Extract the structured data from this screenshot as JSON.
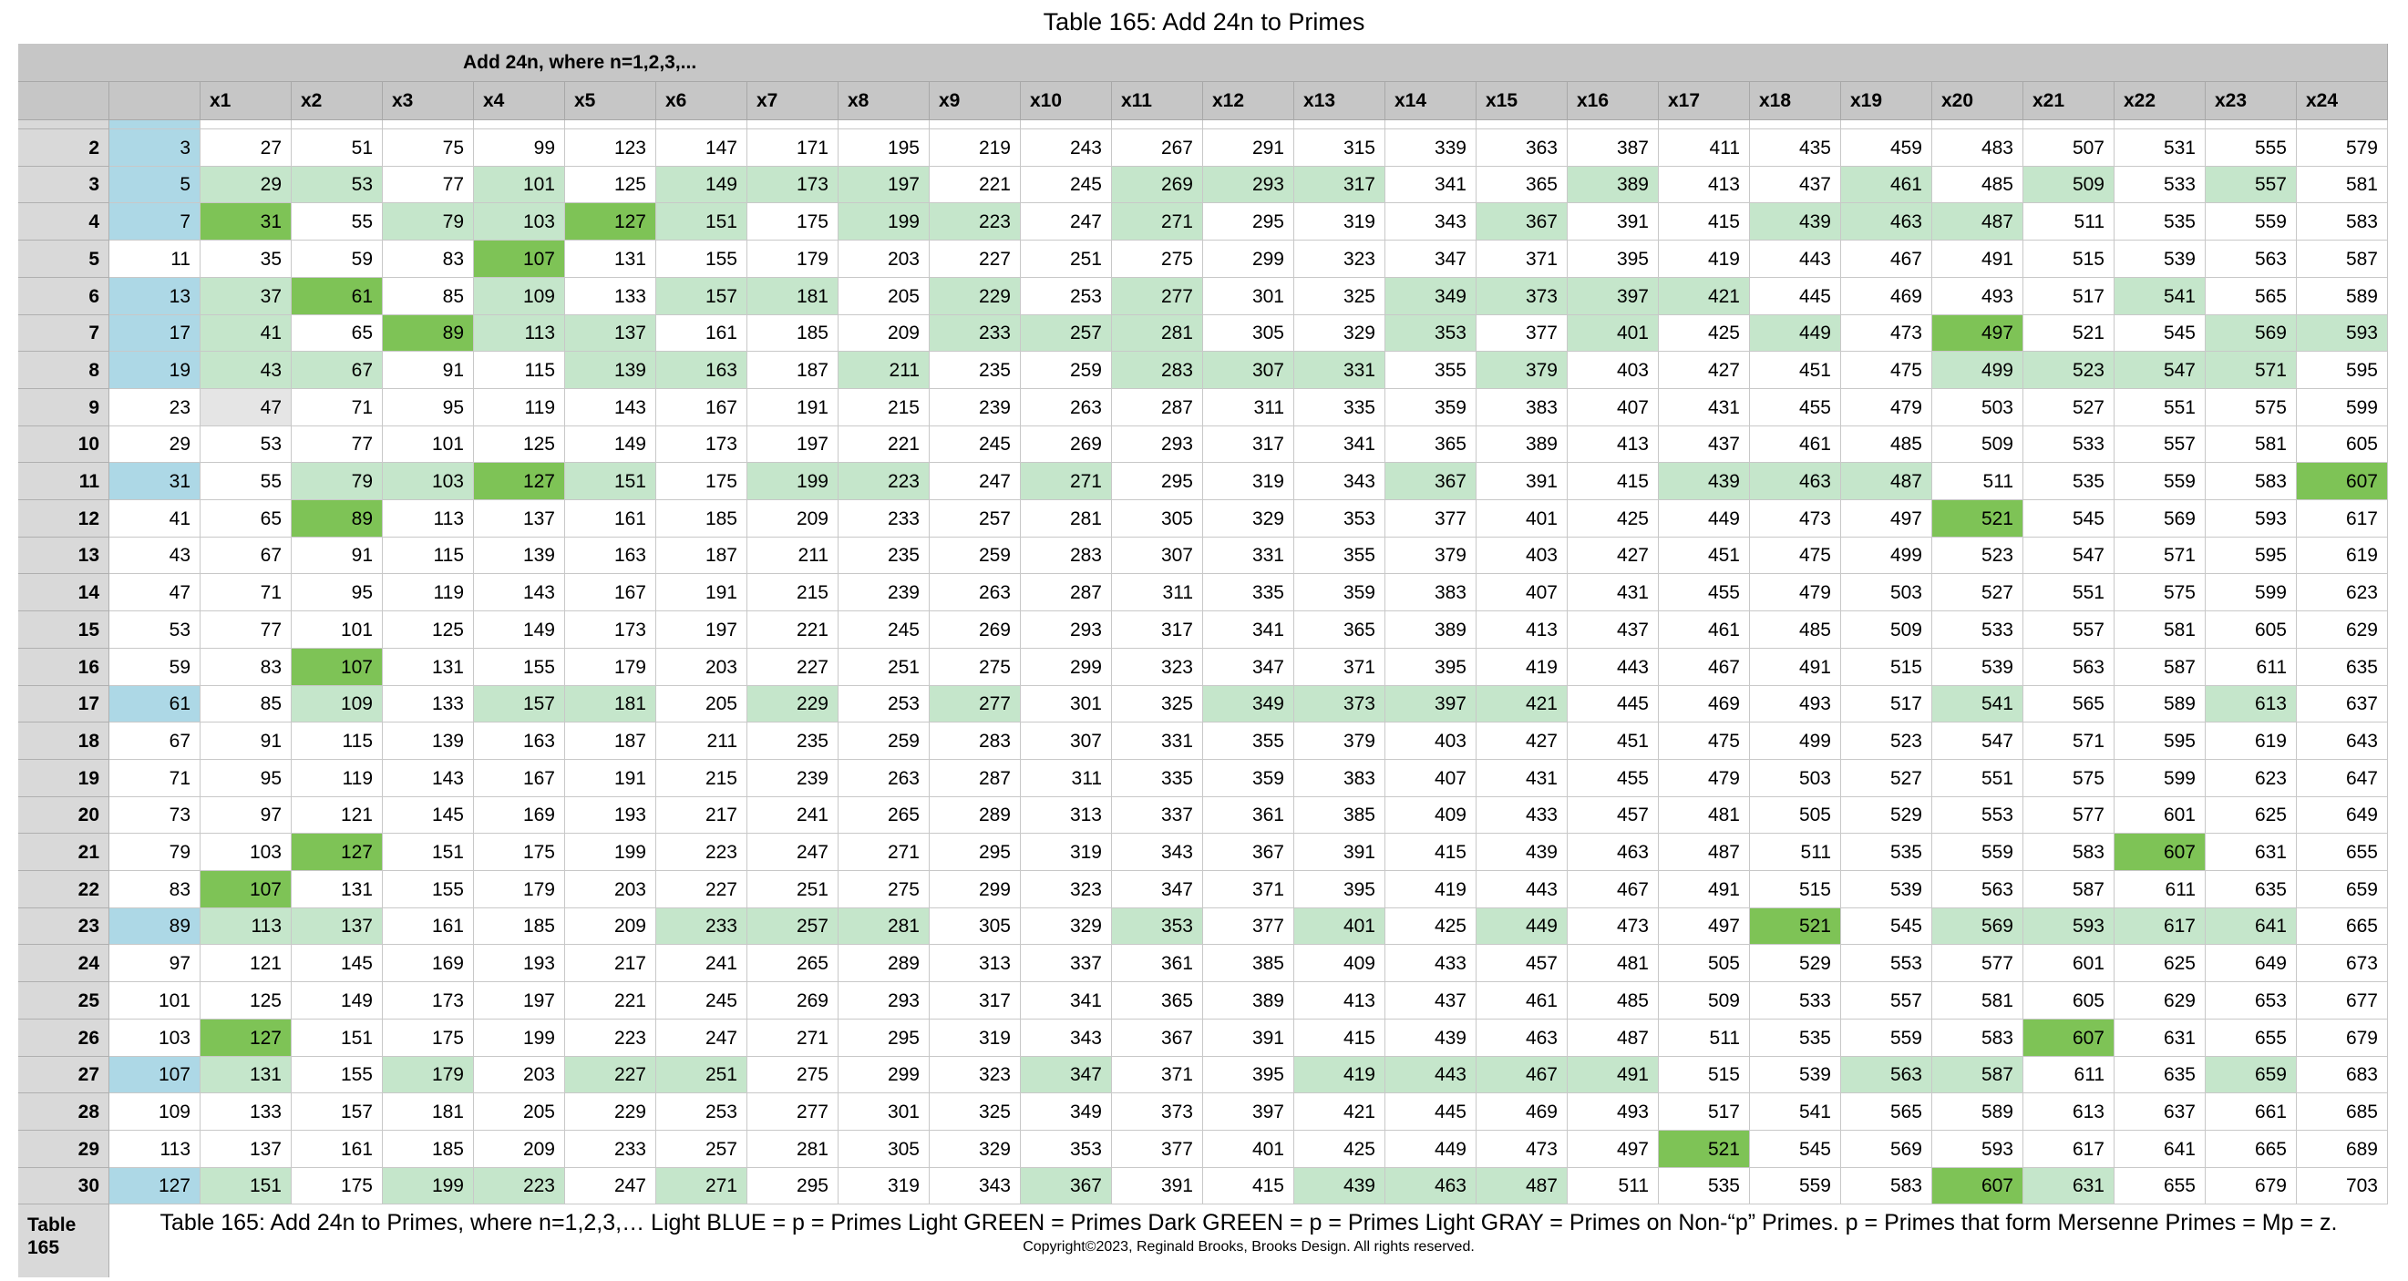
{
  "title": "Table 165: Add 24n to Primes",
  "band_title": "Add 24n, where n=1,2,3,...",
  "columns": [
    "x1",
    "x2",
    "x3",
    "x4",
    "x5",
    "x6",
    "x7",
    "x8",
    "x9",
    "x10",
    "x11",
    "x12",
    "x13",
    "x14",
    "x15",
    "x16",
    "x17",
    "x18",
    "x19",
    "x20",
    "x21",
    "x22",
    "x23",
    "x24"
  ],
  "rows": [
    {
      "label": "2",
      "p": 3
    },
    {
      "label": "3",
      "p": 5
    },
    {
      "label": "4",
      "p": 7
    },
    {
      "label": "5",
      "p": 11
    },
    {
      "label": "6",
      "p": 13
    },
    {
      "label": "7",
      "p": 17
    },
    {
      "label": "8",
      "p": 19
    },
    {
      "label": "9",
      "p": 23
    },
    {
      "label": "10",
      "p": 29
    },
    {
      "label": "11",
      "p": 31
    },
    {
      "label": "12",
      "p": 41
    },
    {
      "label": "13",
      "p": 43
    },
    {
      "label": "14",
      "p": 47
    },
    {
      "label": "15",
      "p": 53
    },
    {
      "label": "16",
      "p": 59
    },
    {
      "label": "17",
      "p": 61
    },
    {
      "label": "18",
      "p": 67
    },
    {
      "label": "19",
      "p": 71
    },
    {
      "label": "20",
      "p": 73
    },
    {
      "label": "21",
      "p": 79
    },
    {
      "label": "22",
      "p": 83
    },
    {
      "label": "23",
      "p": 89
    },
    {
      "label": "24",
      "p": 97
    },
    {
      "label": "25",
      "p": 101
    },
    {
      "label": "26",
      "p": 103
    },
    {
      "label": "27",
      "p": 107
    },
    {
      "label": "28",
      "p": 109
    },
    {
      "label": "29",
      "p": 113
    },
    {
      "label": "30",
      "p": 127
    }
  ],
  "increment": 24,
  "highlights": {
    "blue_rows": [
      "2",
      "3",
      "4",
      "6",
      "7",
      "8",
      "11",
      "17",
      "23",
      "27",
      "30"
    ],
    "light_green": [
      "3:1",
      "3:2",
      "3:4",
      "3:6",
      "3:7",
      "3:8",
      "3:11",
      "3:12",
      "3:13",
      "3:16",
      "3:19",
      "3:21",
      "3:23",
      "4:3",
      "4:4",
      "4:6",
      "4:8",
      "4:9",
      "4:11",
      "4:15",
      "4:18",
      "4:19",
      "4:20",
      "6:1",
      "6:4",
      "6:6",
      "6:7",
      "6:9",
      "6:11",
      "6:14",
      "6:15",
      "6:16",
      "6:17",
      "6:22",
      "7:1",
      "7:4",
      "7:5",
      "7:9",
      "7:10",
      "7:11",
      "7:14",
      "7:16",
      "7:18",
      "7:23",
      "7:24",
      "8:1",
      "8:2",
      "8:5",
      "8:6",
      "8:8",
      "8:11",
      "8:12",
      "8:13",
      "8:15",
      "8:20",
      "8:21",
      "8:22",
      "8:23",
      "11:2",
      "11:3",
      "11:5",
      "11:7",
      "11:8",
      "11:10",
      "11:14",
      "11:17",
      "11:18",
      "11:19",
      "17:2",
      "17:4",
      "17:5",
      "17:7",
      "17:9",
      "17:12",
      "17:13",
      "17:14",
      "17:15",
      "17:20",
      "17:23",
      "23:1",
      "23:2",
      "23:6",
      "23:7",
      "23:8",
      "23:11",
      "23:13",
      "23:15",
      "23:20",
      "23:21",
      "23:22",
      "23:23",
      "27:1",
      "27:3",
      "27:5",
      "27:6",
      "27:10",
      "27:13",
      "27:14",
      "27:15",
      "27:16",
      "27:19",
      "27:20",
      "27:23",
      "30:1",
      "30:3",
      "30:4",
      "30:6",
      "30:10",
      "30:13",
      "30:14",
      "30:15",
      "30:21"
    ],
    "dark_green": [
      "4:1",
      "4:5",
      "5:4",
      "6:2",
      "7:3",
      "11:4",
      "11:24",
      "12:2",
      "12:20",
      "16:2",
      "21:2",
      "21:22",
      "22:1",
      "23:18",
      "26:1",
      "26:21",
      "29:17",
      "30:20",
      "7:20"
    ],
    "light_gray": [
      "9:1"
    ]
  },
  "colors": {
    "header_gray": "#c6c6c6",
    "row_header_gray": "#d9d9d9",
    "light_blue": "#add8e6",
    "light_green": "#c5e6cb",
    "dark_green": "#7ec356",
    "light_gray": "#e5e5e5"
  },
  "footer": {
    "label": "Table 165",
    "caption": "Table 165: Add 24n to Primes, where n=1,2,3,…  Light BLUE = p = Primes    Light GREEN = Primes   Dark GREEN = p = Primes   Light GRAY = Primes on Non-“p” Primes.  p = Primes that form Mersenne Primes = Mp = z.",
    "copyright": "Copyright©2023, Reginald Brooks, Brooks Design. All rights reserved."
  }
}
